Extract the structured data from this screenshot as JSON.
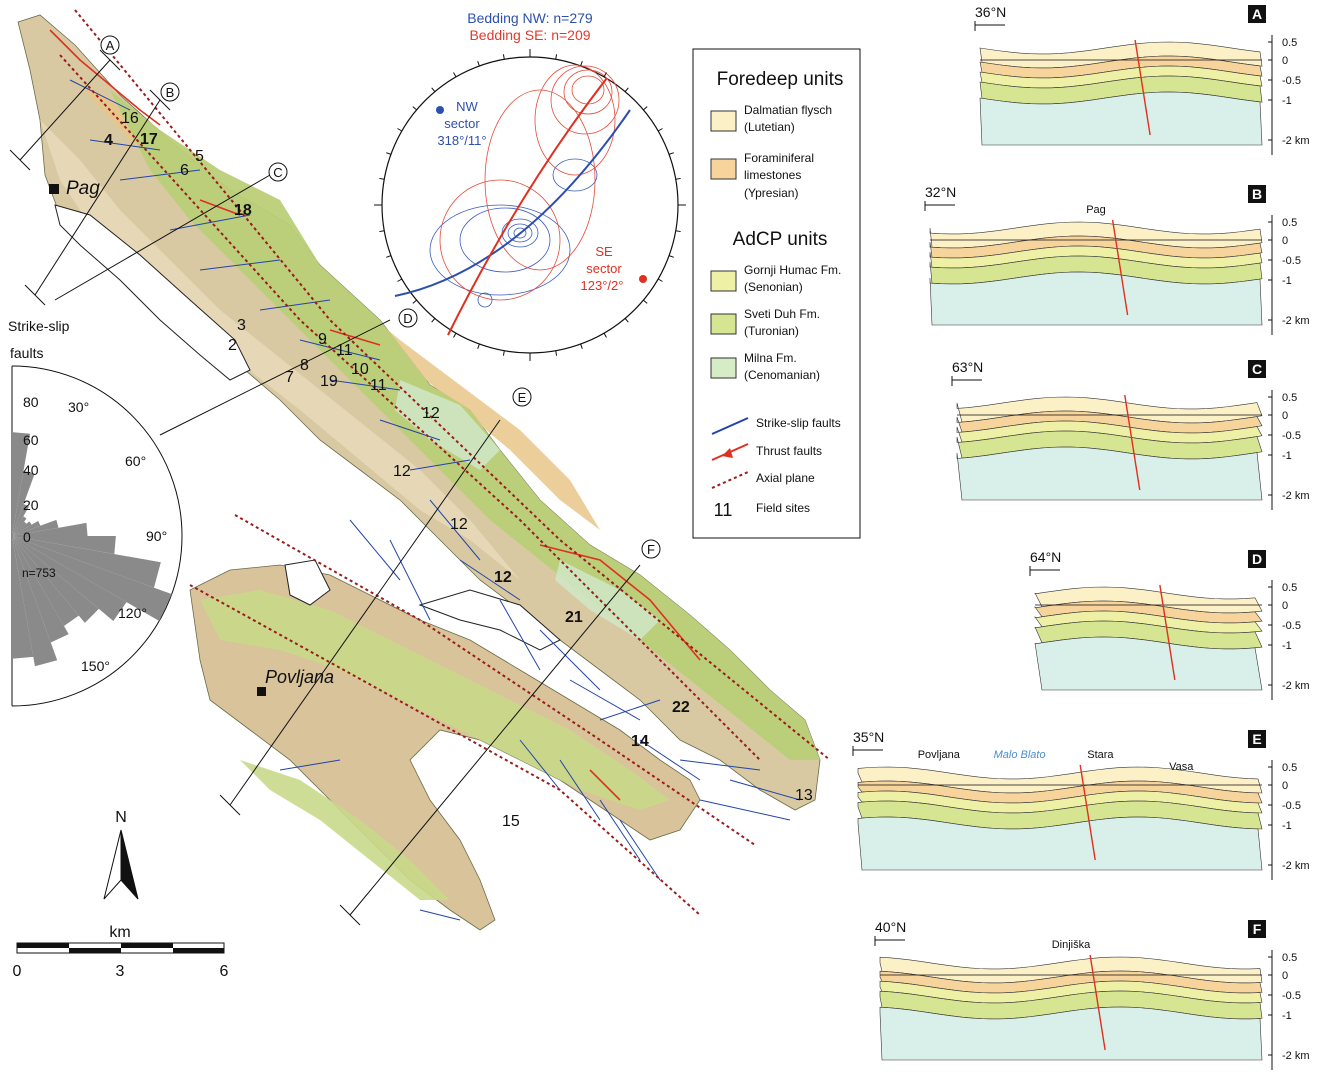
{
  "map": {
    "towns": {
      "pag": "Pag",
      "povljana": "Povljana"
    },
    "section_lines": [
      "A",
      "B",
      "C",
      "D",
      "E",
      "F"
    ],
    "field_sites": [
      "16",
      "4",
      "17",
      "5",
      "6",
      "18",
      "3",
      "2",
      "9",
      "11",
      "10",
      "8",
      "7",
      "19",
      "11",
      "12",
      "12",
      "12",
      "12",
      "21",
      "22",
      "14",
      "13",
      "15"
    ],
    "colors": {
      "dalmatian_flysch": "#fbf0c6",
      "foraminiferal_limestones": "#f6d49c",
      "gornji_humac": "#eef0a6",
      "sveti_duh": "#d5e592",
      "milna": "#d6ecc6",
      "strike_slip": "#2244aa",
      "thrust": "#e03020",
      "axial_plane": "#9b1c1c"
    }
  },
  "stereonet": {
    "title_nw": "Bedding NW: n=279",
    "title_se": "Bedding SE: n=209",
    "nw_label": [
      "NW",
      "sector",
      "318°/11°"
    ],
    "se_label": [
      "SE",
      "sector",
      "123°/2°"
    ]
  },
  "rose": {
    "title": [
      "Strike-slip",
      "faults"
    ],
    "radial_ticks": [
      "80",
      "60",
      "40",
      "20",
      "0"
    ],
    "angle_labels": [
      "30°",
      "60°",
      "90°",
      "120°",
      "150°"
    ],
    "count_label": "n=753"
  },
  "north_label": "N",
  "scale": {
    "unit": "km",
    "ticks": [
      "0",
      "3",
      "6"
    ]
  },
  "legend": {
    "foredeep_heading": "Foredeep units",
    "adcp_heading": "AdCP units",
    "units": [
      {
        "name": "Dalmatian flysch",
        "age": "(Lutetian)",
        "color": "#fbf0c6"
      },
      {
        "name": "Foraminiferal",
        "name2": "limestones",
        "age": "(Ypresian)",
        "color": "#f6d49c"
      },
      {
        "name": "Gornji Humac Fm.",
        "age": "(Senonian)",
        "color": "#eef0a6"
      },
      {
        "name": "Sveti Duh Fm.",
        "age": "(Turonian)",
        "color": "#d5e592"
      },
      {
        "name": "Milna Fm.",
        "age": "(Cenomanian)",
        "color": "#d6ecc6"
      }
    ],
    "lines": [
      "Strike-slip faults",
      "Thrust faults",
      "Axial plane"
    ],
    "site_sample": "11",
    "site_label": "Field sites"
  },
  "sections": [
    {
      "letter": "A",
      "orient": "36°N"
    },
    {
      "letter": "B",
      "orient": "32°N",
      "places": [
        "Pag"
      ]
    },
    {
      "letter": "C",
      "orient": "63°N"
    },
    {
      "letter": "D",
      "orient": "64°N"
    },
    {
      "letter": "E",
      "orient": "35°N",
      "places": [
        "Povljana",
        "Malo Blato",
        "Stara",
        "Vasa"
      ]
    },
    {
      "letter": "F",
      "orient": "40°N",
      "places": [
        "Dinjiška"
      ]
    }
  ],
  "depth_ticks": [
    "0.5",
    "0",
    "-0.5",
    "-1",
    "-2 km"
  ]
}
